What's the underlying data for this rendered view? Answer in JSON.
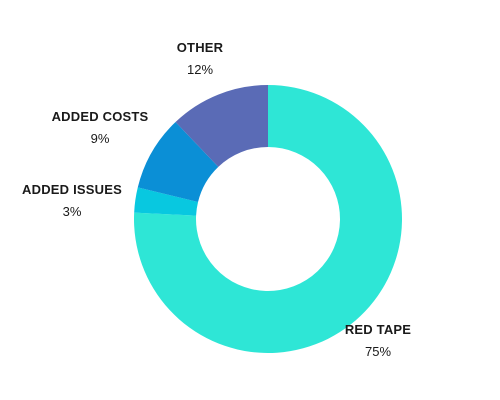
{
  "chart_data": {
    "type": "pie",
    "donut": true,
    "start_angle_deg": 0,
    "direction": "clockwise",
    "slices": [
      {
        "label": "RED TAPE",
        "value": 75,
        "value_label": "75%",
        "color": "#2ee6d6"
      },
      {
        "label": "ADDED ISSUES",
        "value": 3,
        "value_label": "3%",
        "color": "#08c8e0"
      },
      {
        "label": "ADDED COSTS",
        "value": 9,
        "value_label": "9%",
        "color": "#0b8fd6"
      },
      {
        "label": "OTHER",
        "value": 12,
        "value_label": "12%",
        "color": "#5a6bb6"
      }
    ]
  }
}
